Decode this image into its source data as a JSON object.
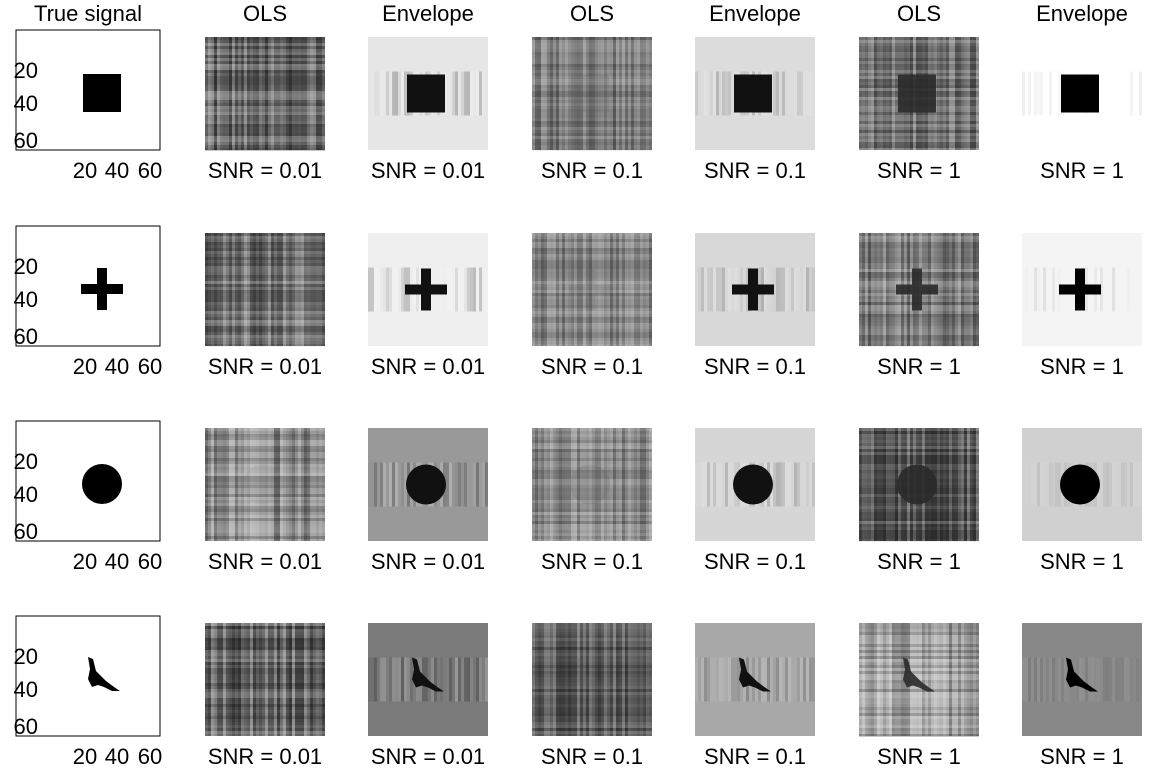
{
  "column_titles": [
    "True signal",
    "OLS",
    "Envelope",
    "OLS",
    "Envelope",
    "OLS",
    "Envelope"
  ],
  "rows": [
    {
      "yticks": [
        "20",
        "40",
        "60"
      ],
      "xticks": [
        "20",
        "40",
        "60"
      ],
      "panel_labels": [
        "SNR = 0.01",
        "SNR = 0.01",
        "SNR = 0.1",
        "SNR = 0.1",
        "SNR = 1",
        "SNR = 1"
      ]
    },
    {
      "yticks": [
        "20",
        "40",
        "60"
      ],
      "xticks": [
        "20",
        "40",
        "60"
      ],
      "panel_labels": [
        "SNR = 0.01",
        "SNR = 0.01",
        "SNR = 0.1",
        "SNR = 0.1",
        "SNR = 1",
        "SNR = 1"
      ]
    },
    {
      "yticks": [
        "20",
        "40",
        "60"
      ],
      "xticks": [
        "20",
        "40",
        "60"
      ],
      "panel_labels": [
        "SNR = 0.01",
        "SNR = 0.01",
        "SNR = 0.1",
        "SNR = 0.1",
        "SNR = 1",
        "SNR = 1"
      ]
    },
    {
      "yticks": [
        "20",
        "40",
        "60"
      ],
      "xticks": [
        "20",
        "40",
        "60"
      ],
      "panel_labels": [
        "SNR = 0.01",
        "SNR = 0.01",
        "SNR = 0.1",
        "SNR = 0.1",
        "SNR = 1",
        "SNR = 1"
      ]
    }
  ]
}
